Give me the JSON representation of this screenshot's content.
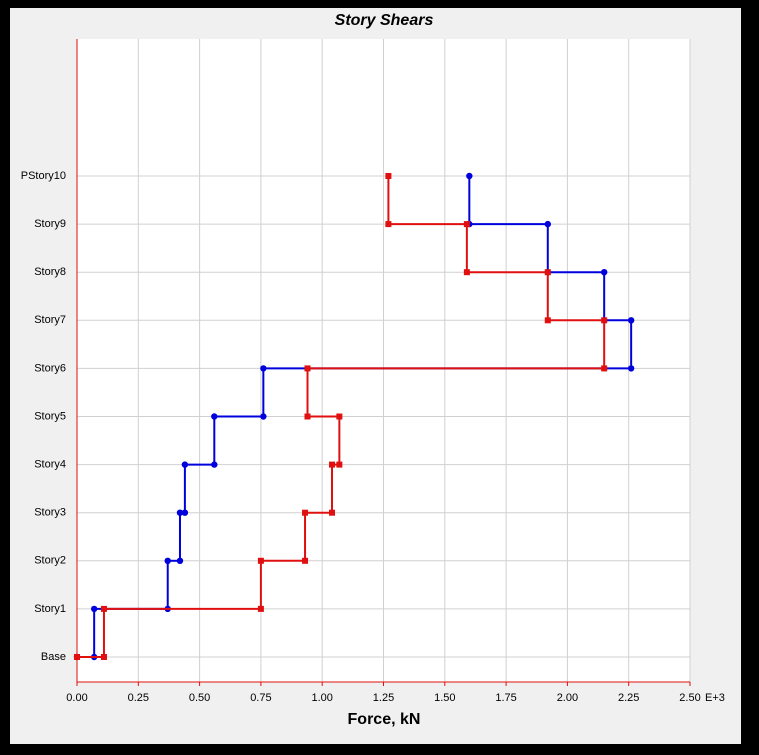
{
  "chart_data": {
    "type": "step",
    "title": "Story Shears",
    "x_label": "Force, kN",
    "x_unit": "E+3",
    "categories": [
      "Base",
      "Story1",
      "Story2",
      "Story3",
      "Story4",
      "Story5",
      "Story6",
      "Story7",
      "Story8",
      "Story9",
      "PStory10"
    ],
    "series": [
      {
        "color": "#0000dd",
        "marker": "circle",
        "values": [
          0,
          0.07,
          0.37,
          0.42,
          0.44,
          0.56,
          0.76,
          2.26,
          2.15,
          1.92,
          1.6
        ]
      },
      {
        "color": "#e01010",
        "marker": "square",
        "values": [
          0,
          0.11,
          0.75,
          0.93,
          1.04,
          1.07,
          0.94,
          2.15,
          1.92,
          1.59,
          1.27
        ]
      }
    ],
    "xlim": [
      0,
      2.5
    ],
    "xticks": [
      {
        "value": 0,
        "label": "0.00"
      },
      0.25,
      {
        "value": 0.5,
        "label": "0.50"
      },
      0.75,
      {
        "value": 1,
        "label": "1.00"
      },
      1.25,
      {
        "value": 1.5,
        "label": "1.50"
      },
      1.75,
      {
        "value": 2,
        "label": "2.00"
      },
      2.25,
      {
        "value": 2.5,
        "label": "2.50"
      }
    ],
    "grid": true
  }
}
